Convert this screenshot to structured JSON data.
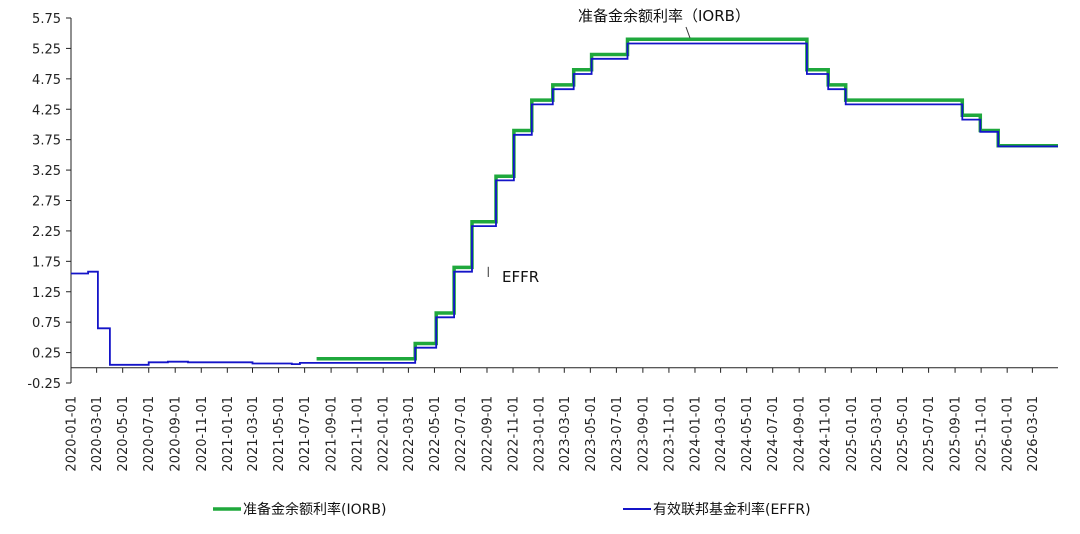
{
  "chart_data": {
    "type": "line",
    "step": true,
    "title": "",
    "xlabel": "",
    "ylabel": "",
    "ylim": [
      -0.25,
      5.75
    ],
    "yticks": [
      "-0.25",
      "0.25",
      "0.75",
      "1.25",
      "1.75",
      "2.25",
      "2.75",
      "3.25",
      "3.75",
      "4.25",
      "4.75",
      "5.25",
      "5.75"
    ],
    "xlim": [
      "2020-01-01",
      "2026-04-30"
    ],
    "xticks": [
      "2020-01-01",
      "2020-03-01",
      "2020-05-01",
      "2020-07-01",
      "2020-09-01",
      "2020-11-01",
      "2021-01-01",
      "2021-03-01",
      "2021-05-01",
      "2021-07-01",
      "2021-09-01",
      "2021-11-01",
      "2022-01-01",
      "2022-03-01",
      "2022-05-01",
      "2022-07-01",
      "2022-09-01",
      "2022-11-01",
      "2023-01-01",
      "2023-03-01",
      "2023-05-01",
      "2023-07-01",
      "2023-09-01",
      "2023-11-01",
      "2024-01-01",
      "2024-03-01",
      "2024-05-01",
      "2024-07-01",
      "2024-09-01",
      "2024-11-01",
      "2025-01-01",
      "2025-03-01",
      "2025-05-01",
      "2025-07-01",
      "2025-09-01",
      "2025-11-01",
      "2026-01-01",
      "2026-03-01"
    ],
    "legend_position": "bottom",
    "annotations": [
      {
        "text": "准备金余额利率（IORB）",
        "series": "iorb"
      },
      {
        "text": "EFFR",
        "series": "effr"
      }
    ],
    "series": [
      {
        "id": "iorb",
        "name": "准备金余额利率(IORB)",
        "color": "#1fa83c",
        "points": [
          [
            "2021-07-29",
            0.15
          ],
          [
            "2022-03-17",
            0.4
          ],
          [
            "2022-05-05",
            0.9
          ],
          [
            "2022-06-16",
            1.65
          ],
          [
            "2022-07-28",
            2.4
          ],
          [
            "2022-09-22",
            3.15
          ],
          [
            "2022-11-03",
            3.9
          ],
          [
            "2022-12-15",
            4.4
          ],
          [
            "2023-02-02",
            4.65
          ],
          [
            "2023-03-23",
            4.9
          ],
          [
            "2023-05-04",
            5.15
          ],
          [
            "2023-07-27",
            5.4
          ],
          [
            "2024-09-19",
            4.9
          ],
          [
            "2024-11-08",
            4.65
          ],
          [
            "2024-12-19",
            4.4
          ],
          [
            "2025-09-18",
            4.15
          ],
          [
            "2025-10-30",
            3.9
          ],
          [
            "2025-12-11",
            3.65
          ],
          [
            "2026-04-30",
            3.65
          ]
        ]
      },
      {
        "id": "effr",
        "name": "有效联邦基金利率(EFFR)",
        "color": "#1414c8",
        "points": [
          [
            "2020-01-01",
            1.55
          ],
          [
            "2020-02-10",
            1.58
          ],
          [
            "2020-03-04",
            0.65
          ],
          [
            "2020-03-17",
            0.65
          ],
          [
            "2020-04-01",
            0.05
          ],
          [
            "2020-07-01",
            0.09
          ],
          [
            "2020-08-15",
            0.1
          ],
          [
            "2020-10-01",
            0.09
          ],
          [
            "2021-03-01",
            0.07
          ],
          [
            "2021-06-01",
            0.06
          ],
          [
            "2021-06-20",
            0.08
          ],
          [
            "2021-09-01",
            0.08
          ],
          [
            "2022-03-17",
            0.33
          ],
          [
            "2022-04-10",
            0.33
          ],
          [
            "2022-05-05",
            0.83
          ],
          [
            "2022-06-16",
            1.58
          ],
          [
            "2022-07-28",
            2.33
          ],
          [
            "2022-09-22",
            3.08
          ],
          [
            "2022-11-03",
            3.83
          ],
          [
            "2022-12-15",
            4.33
          ],
          [
            "2023-02-02",
            4.58
          ],
          [
            "2023-03-23",
            4.83
          ],
          [
            "2023-05-04",
            5.08
          ],
          [
            "2023-06-01",
            5.08
          ],
          [
            "2023-07-27",
            5.33
          ],
          [
            "2024-09-19",
            4.83
          ],
          [
            "2024-11-08",
            4.58
          ],
          [
            "2024-12-19",
            4.33
          ],
          [
            "2025-09-18",
            4.08
          ],
          [
            "2025-10-30",
            3.88
          ],
          [
            "2025-12-11",
            3.64
          ],
          [
            "2026-04-30",
            3.64
          ]
        ]
      }
    ]
  }
}
